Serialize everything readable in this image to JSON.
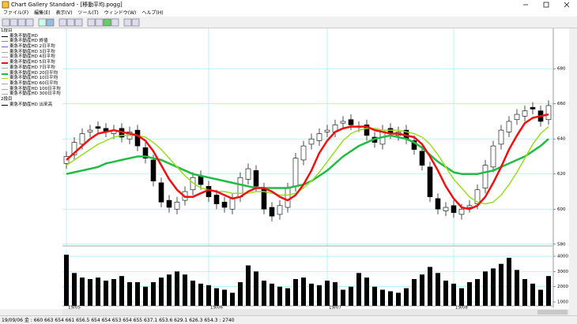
{
  "window": {
    "title": "Chart Gallery Standard - [移動平均.pogg]",
    "menu": [
      "ファイル(F)",
      "編集(E)",
      "表示(V)",
      "ツール(T)",
      "ウィンドウ(W)",
      "ヘルプ(H)"
    ]
  },
  "legend": {
    "panel1": "1段目",
    "items": [
      {
        "label": "東急不動産HD",
        "color": "#000000"
      },
      {
        "label": "東急不動産HD 終値",
        "color": "#888888"
      },
      {
        "label": "東急不動産HD 2日平均",
        "color": "#6666cc"
      },
      {
        "label": "東急不動産HD 3日平均",
        "color": "#aaaaaa"
      },
      {
        "label": "東急不動産HD 4日平均",
        "color": "#aaaaaa"
      },
      {
        "label": "東急不動産HD 5日平均",
        "color": "#ee1111"
      },
      {
        "label": "東急不動産HD 7日平均",
        "color": "#aaaaaa"
      },
      {
        "label": "東急不動産HD 20日平均",
        "color": "#22bb44"
      },
      {
        "label": "東急不動産HD 10日平均",
        "color": "#99dd22"
      },
      {
        "label": "東急不動産HD 60日平均",
        "color": "#aaaaaa"
      },
      {
        "label": "東急不動産HD 100日平均",
        "color": "#aaaaaa"
      },
      {
        "label": "東急不動産HD 300日平均",
        "color": "#aaaaaa"
      }
    ],
    "panel2": "2段目",
    "items2": [
      {
        "label": "東急不動産HD 出来高",
        "color": "#000000"
      }
    ]
  },
  "status": "19/09/06 金 : 660 663 654 661 656.5 654 654 653 654 655 637.1 653.6 629.1 626.3 654.3 : 2740",
  "chart_data": [
    {
      "type": "candlestick",
      "categories": [
        "19/05",
        null,
        null,
        null,
        null,
        null,
        null,
        null,
        null,
        null,
        null,
        null,
        null,
        null,
        null,
        null,
        null,
        null,
        "19/06",
        null,
        null,
        null,
        null,
        null,
        null,
        null,
        null,
        null,
        null,
        null,
        null,
        null,
        null,
        "19/07",
        null,
        null,
        null,
        null,
        null,
        null,
        null,
        null,
        null,
        null,
        null,
        null,
        null,
        null,
        null,
        "19/08",
        null,
        null,
        null,
        null,
        null,
        null,
        null,
        null,
        null,
        null,
        null,
        null
      ],
      "open": [
        626,
        631,
        637,
        644,
        647,
        646,
        643,
        646,
        640,
        645,
        635,
        628,
        615,
        605,
        600,
        605,
        611,
        619,
        613,
        608,
        604,
        600,
        607,
        617,
        622,
        612,
        601,
        597,
        601,
        613,
        628,
        637,
        639,
        644,
        644,
        649,
        651,
        647,
        648,
        641,
        637,
        646,
        642,
        645,
        639,
        633,
        624,
        606,
        599,
        602,
        597,
        601,
        603,
        612,
        624,
        637,
        644,
        651,
        653,
        658,
        656,
        651
      ],
      "high": [
        633,
        641,
        646,
        648,
        650,
        649,
        648,
        649,
        647,
        648,
        638,
        631,
        618,
        608,
        607,
        613,
        621,
        622,
        616,
        611,
        607,
        609,
        621,
        626,
        625,
        615,
        604,
        605,
        615,
        632,
        639,
        643,
        646,
        648,
        651,
        653,
        654,
        650,
        651,
        644,
        648,
        649,
        647,
        648,
        642,
        636,
        627,
        609,
        604,
        605,
        603,
        605,
        614,
        628,
        639,
        648,
        653,
        657,
        659,
        661,
        659,
        662
      ],
      "low": [
        623,
        628,
        634,
        641,
        643,
        641,
        640,
        638,
        637,
        633,
        626,
        613,
        601,
        598,
        597,
        602,
        608,
        611,
        604,
        600,
        598,
        597,
        604,
        614,
        610,
        597,
        593,
        594,
        598,
        610,
        625,
        634,
        636,
        641,
        641,
        646,
        645,
        644,
        639,
        635,
        634,
        640,
        639,
        637,
        631,
        622,
        604,
        597,
        596,
        595,
        594,
        598,
        600,
        609,
        621,
        634,
        641,
        648,
        650,
        654,
        647,
        648
      ],
      "close": [
        630,
        638,
        643,
        645,
        646,
        644,
        645,
        641,
        644,
        636,
        629,
        616,
        604,
        601,
        604,
        610,
        618,
        614,
        607,
        603,
        601,
        606,
        618,
        623,
        613,
        600,
        596,
        602,
        612,
        629,
        636,
        640,
        643,
        645,
        648,
        650,
        648,
        647,
        642,
        638,
        645,
        643,
        644,
        640,
        634,
        625,
        607,
        600,
        601,
        598,
        600,
        602,
        611,
        625,
        636,
        645,
        650,
        654,
        656,
        657,
        650,
        659
      ],
      "series": [
        {
          "name": "東急不動産HD 20日平均",
          "color": "#22bb44",
          "width": 2.5,
          "values": [
            620,
            621,
            622,
            623,
            624,
            626,
            627,
            628,
            629,
            630,
            630,
            629,
            628,
            626,
            624,
            622,
            620,
            619,
            618,
            617,
            616,
            615,
            614,
            613,
            612,
            612,
            612,
            612,
            612,
            613,
            614,
            616,
            619,
            622,
            626,
            630,
            633,
            636,
            638,
            640,
            641,
            642,
            641,
            640,
            638,
            635,
            631,
            627,
            624,
            621,
            620,
            620,
            620,
            621,
            622,
            624,
            626,
            628,
            630,
            633,
            636,
            640
          ]
        },
        {
          "name": "東急不動産HD 10日平均",
          "color": "#99dd22",
          "width": 1.5,
          "values": [
            625,
            628,
            631,
            634,
            637,
            639,
            641,
            642,
            642,
            642,
            641,
            638,
            634,
            629,
            624,
            619,
            615,
            612,
            611,
            610,
            610,
            609,
            609,
            609,
            610,
            610,
            609,
            608,
            608,
            609,
            612,
            616,
            621,
            627,
            633,
            639,
            643,
            645,
            646,
            646,
            645,
            645,
            645,
            644,
            643,
            641,
            637,
            631,
            624,
            617,
            612,
            607,
            604,
            603,
            604,
            608,
            614,
            621,
            629,
            637,
            643,
            647
          ]
        },
        {
          "name": "東急不動産HD 5日平均",
          "color": "#ee1111",
          "width": 2.5,
          "values": [
            628,
            632,
            636,
            640,
            643,
            644,
            645,
            644,
            643,
            642,
            639,
            633,
            625,
            617,
            611,
            607,
            607,
            609,
            611,
            610,
            608,
            606,
            607,
            610,
            612,
            612,
            610,
            607,
            605,
            608,
            614,
            622,
            632,
            639,
            644,
            646,
            647,
            647,
            647,
            645,
            644,
            643,
            643,
            642,
            641,
            637,
            630,
            622,
            613,
            606,
            601,
            600,
            602,
            607,
            615,
            624,
            634,
            642,
            649,
            652,
            653,
            654
          ]
        }
      ],
      "ylim": [
        579,
        703
      ],
      "yticks": [
        580,
        600,
        620,
        640,
        660,
        680
      ],
      "grid": true,
      "grid_color": "#8ee8f0"
    },
    {
      "type": "bar",
      "values": [
        4100,
        2900,
        2600,
        2500,
        2600,
        2400,
        2500,
        2700,
        2300,
        2300,
        2000,
        2300,
        2600,
        2800,
        3000,
        2800,
        2400,
        2200,
        2100,
        1900,
        1800,
        1600,
        2300,
        3400,
        3000,
        2400,
        2200,
        2000,
        1900,
        2500,
        2600,
        2200,
        2100,
        2400,
        2300,
        1800,
        2000,
        2900,
        2600,
        2000,
        1800,
        1700,
        1600,
        1900,
        2500,
        2800,
        3300,
        2900,
        2400,
        2200,
        1900,
        2300,
        2500,
        3000,
        3200,
        3500,
        3900,
        3100,
        2500,
        2200,
        1800,
        2700
      ],
      "color": "#000000",
      "ylim": [
        740,
        4470
      ],
      "yticks": [
        1000,
        2000,
        3000,
        4000
      ],
      "grid": true,
      "grid_color": "#8ee8f0"
    }
  ]
}
